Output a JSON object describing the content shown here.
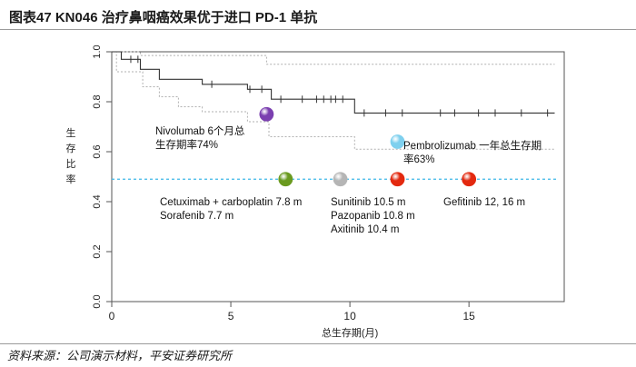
{
  "header": {
    "title": "图表47     KN046 治疗鼻咽癌效果优于进口 PD-1 单抗"
  },
  "footer": {
    "source": "资料来源：公司演示材料，平安证券研究所"
  },
  "colors": {
    "km_line": "#333333",
    "ci_line": "#b0b0b0",
    "reference_line": "#3db7e8",
    "nivolumab": "#7b3fb0",
    "pembrolizumab": "#7fd0ee",
    "cetuximab": "#6a9a1f",
    "sunitinib": "#b5b5b5",
    "axitinib": "#e3290f",
    "gefitinib": "#e3290f"
  },
  "chart_data": {
    "type": "line",
    "title": "KN046 治疗鼻咽癌效果优于进口 PD-1 单抗",
    "xlabel": "总生存期(月)",
    "ylabel": "生存比率",
    "xlim": [
      0,
      19
    ],
    "ylim": [
      0,
      1.0
    ],
    "xticks": [
      0,
      5,
      10,
      15
    ],
    "xtick_labels": [
      "0",
      "5",
      "10",
      "15"
    ],
    "yticks": [
      0.0,
      0.2,
      0.4,
      0.6,
      0.8,
      1.0
    ],
    "ytick_labels": [
      "0.0",
      "0.2",
      "0.4",
      "0.6",
      "0.8",
      "1.0"
    ],
    "km_curve": {
      "name": "KN046",
      "points": [
        [
          0,
          1.0
        ],
        [
          0.4,
          1.0
        ],
        [
          0.4,
          0.97
        ],
        [
          1.2,
          0.97
        ],
        [
          1.2,
          0.93
        ],
        [
          2.0,
          0.93
        ],
        [
          2.0,
          0.89
        ],
        [
          3.8,
          0.89
        ],
        [
          3.8,
          0.87
        ],
        [
          5.7,
          0.87
        ],
        [
          5.7,
          0.85
        ],
        [
          6.7,
          0.85
        ],
        [
          6.7,
          0.81
        ],
        [
          10.2,
          0.81
        ],
        [
          10.2,
          0.755
        ],
        [
          18.6,
          0.755
        ]
      ],
      "censor_x": [
        0.8,
        1.1,
        4.2,
        5.8,
        6.3,
        7.1,
        8.0,
        8.6,
        8.9,
        9.2,
        9.4,
        9.7,
        10.6,
        11.5,
        12.2,
        13.8,
        14.4,
        15.4,
        16.1,
        17.2,
        18.3
      ]
    },
    "ci_upper": {
      "name": "95% CI upper",
      "points": [
        [
          0,
          1.0
        ],
        [
          1.2,
          1.0
        ],
        [
          1.2,
          0.985
        ],
        [
          6.5,
          0.985
        ],
        [
          6.5,
          0.95
        ],
        [
          18.6,
          0.95
        ]
      ]
    },
    "ci_lower": {
      "name": "95% CI lower",
      "points": [
        [
          0,
          1.0
        ],
        [
          0.2,
          1.0
        ],
        [
          0.2,
          0.92
        ],
        [
          1.3,
          0.92
        ],
        [
          1.3,
          0.86
        ],
        [
          2.0,
          0.86
        ],
        [
          2.0,
          0.82
        ],
        [
          2.8,
          0.82
        ],
        [
          2.8,
          0.78
        ],
        [
          3.8,
          0.78
        ],
        [
          3.8,
          0.76
        ],
        [
          5.7,
          0.76
        ],
        [
          5.7,
          0.72
        ],
        [
          6.6,
          0.72
        ],
        [
          6.6,
          0.66
        ],
        [
          10.2,
          0.66
        ],
        [
          10.2,
          0.61
        ],
        [
          18.6,
          0.61
        ]
      ]
    },
    "reference_line_y": 0.49,
    "markers": [
      {
        "name": "Nivolumab",
        "x": 6.5,
        "y": 0.75,
        "color_key": "nivolumab"
      },
      {
        "name": "Pembrolizumab",
        "x": 12.0,
        "y": 0.64,
        "color_key": "pembrolizumab"
      },
      {
        "name": "Cetuximab + carboplatin",
        "x": 7.3,
        "y": 0.49,
        "color_key": "cetuximab"
      },
      {
        "name": "Sunitinib / Pazopanib",
        "x": 9.6,
        "y": 0.49,
        "color_key": "sunitinib"
      },
      {
        "name": "Axitinib",
        "x": 12.0,
        "y": 0.49,
        "color_key": "axitinib"
      },
      {
        "name": "Gefitinib",
        "x": 15.0,
        "y": 0.49,
        "color_key": "gefitinib"
      }
    ],
    "annotations": {
      "nivolumab": [
        "Nivolumab 6个月总",
        "生存期率74%"
      ],
      "pembrolizumab": [
        "Pembrolizumab 一年总生存期",
        "率63%"
      ],
      "cetuximab": [
        "Cetuximab + carboplatin 7.8 m",
        "Sorafenib 7.7 m"
      ],
      "sunitinib": [
        "Sunitinib 10.5 m",
        "Pazopanib 10.8 m",
        "Axitinib 10.4 m"
      ],
      "gefitinib": [
        "Gefitinib 12, 16 m"
      ]
    }
  }
}
